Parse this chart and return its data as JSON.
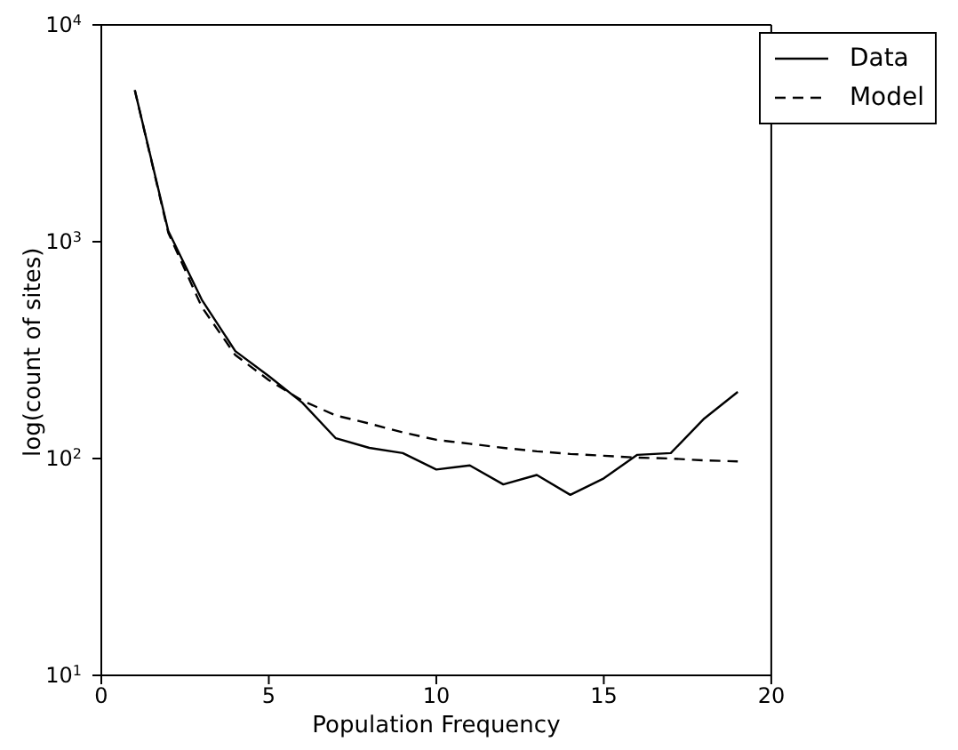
{
  "chart_data": {
    "type": "line",
    "xlabel": "Population Frequency",
    "ylabel": "log(count of sites)",
    "x": [
      1,
      2,
      3,
      4,
      5,
      6,
      7,
      8,
      9,
      10,
      11,
      12,
      13,
      14,
      15,
      16,
      17,
      18,
      19
    ],
    "series": [
      {
        "name": "Data",
        "color": "#000000",
        "line_style": "solid",
        "values": [
          5000,
          1120,
          540,
          313,
          240,
          181,
          124,
          112,
          106,
          89,
          93,
          76,
          84,
          68,
          81,
          104,
          106,
          153,
          203
        ]
      },
      {
        "name": "Model",
        "color": "#000000",
        "line_style": "dashed",
        "values": [
          5000,
          1100,
          500,
          300,
          230,
          185,
          158,
          145,
          132,
          122,
          117,
          112,
          108,
          105,
          103,
          101,
          100,
          98,
          97
        ]
      }
    ],
    "log": "y",
    "xlim": [
      0,
      20
    ],
    "xticks": [
      0,
      5,
      10,
      15,
      20
    ],
    "ylim": [
      10,
      10000
    ],
    "yticks": [
      {
        "value": 10,
        "label": "10$^{1}$"
      },
      {
        "value": 100,
        "label": "10$^{2}$"
      },
      {
        "value": 1000,
        "label": "10$^{3}$"
      },
      {
        "value": 10000,
        "label": "10$^{4}$"
      }
    ],
    "grid": false,
    "legend": "top right",
    "marker": "none"
  }
}
